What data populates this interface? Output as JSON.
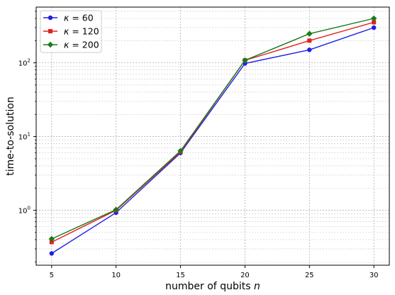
{
  "chart_data": {
    "type": "line",
    "title": "",
    "xlabel": "number of qubits ",
    "xlabel_var": "n",
    "ylabel": "time-to-solution",
    "x": [
      5,
      10,
      15,
      20,
      25,
      30
    ],
    "xlim": [
      3.8,
      31.2
    ],
    "ylim": [
      0.18,
      570
    ],
    "yscale": "log",
    "grid": true,
    "legend_position": "top-left",
    "xticks": [
      "5",
      "10",
      "15",
      "20",
      "25",
      "30"
    ],
    "yticks": [
      {
        "value": 1,
        "base": "10",
        "exp": "0"
      },
      {
        "value": 10,
        "base": "10",
        "exp": "1"
      },
      {
        "value": 100,
        "base": "10",
        "exp": "2"
      }
    ],
    "series": [
      {
        "name_symbol": "κ",
        "name_rest": " = 60",
        "color": "#1f1fe6",
        "marker": "circle",
        "values": [
          0.26,
          0.93,
          6.0,
          98,
          150,
          300
        ]
      },
      {
        "name_symbol": "κ",
        "name_rest": " = 120",
        "color": "#e31f1f",
        "marker": "square",
        "values": [
          0.37,
          1.0,
          6.2,
          108,
          200,
          355
        ]
      },
      {
        "name_symbol": "κ",
        "name_rest": " = 200",
        "color": "#1a7a1a",
        "marker": "diamond",
        "values": [
          0.41,
          1.02,
          6.4,
          108,
          248,
          400
        ]
      }
    ]
  }
}
